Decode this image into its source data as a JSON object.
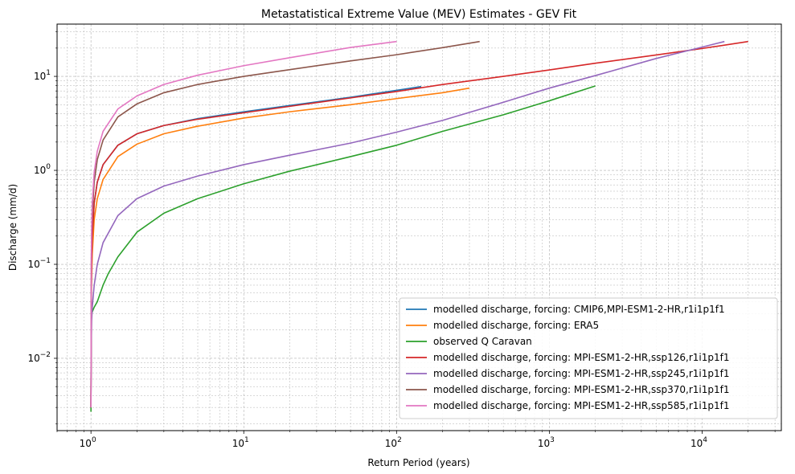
{
  "chart_data": {
    "type": "line",
    "title": "Metastatistical Extreme Value (MEV) Estimates - GEV Fit",
    "xlabel": "Return Period (years)",
    "ylabel": "Discharge (mm/d)",
    "xscale": "log",
    "yscale": "log",
    "xlim": [
      0.6,
      33000
    ],
    "ylim": [
      0.0017,
      36
    ],
    "grid": true,
    "legend_position": "lower-right",
    "x_ticks": [
      {
        "value": 1,
        "base": "10",
        "exp": "0"
      },
      {
        "value": 10,
        "base": "10",
        "exp": "1"
      },
      {
        "value": 100,
        "base": "10",
        "exp": "2"
      },
      {
        "value": 1000,
        "base": "10",
        "exp": "3"
      },
      {
        "value": 10000,
        "base": "10",
        "exp": "4"
      }
    ],
    "y_ticks": [
      {
        "value": 0.01,
        "base": "10",
        "exp": "−2"
      },
      {
        "value": 0.1,
        "base": "10",
        "exp": "−1"
      },
      {
        "value": 1,
        "base": "10",
        "exp": "0"
      },
      {
        "value": 10,
        "base": "10",
        "exp": "1"
      }
    ],
    "series": [
      {
        "name": "modelled discharge, forcing: CMIP6,MPI-ESM1-2-HR,r1i1p1f1",
        "color": "#1f77b4",
        "x": [
          1.0,
          1.005,
          1.01,
          1.02,
          1.05,
          1.1,
          1.2,
          1.5,
          2,
          3,
          5,
          10,
          20,
          50,
          100,
          145
        ],
        "y": [
          0.003,
          0.05,
          0.1,
          0.2,
          0.45,
          0.75,
          1.15,
          1.85,
          2.45,
          3.0,
          3.55,
          4.2,
          4.9,
          6.0,
          7.1,
          7.8
        ]
      },
      {
        "name": "modelled discharge, forcing: ERA5",
        "color": "#ff7f0e",
        "x": [
          1.0,
          1.005,
          1.01,
          1.02,
          1.05,
          1.1,
          1.2,
          1.5,
          2,
          3,
          5,
          10,
          20,
          50,
          100,
          200,
          300
        ],
        "y": [
          0.003,
          0.04,
          0.07,
          0.13,
          0.3,
          0.5,
          0.8,
          1.4,
          1.9,
          2.45,
          2.95,
          3.6,
          4.2,
          5.0,
          5.8,
          6.7,
          7.5
        ]
      },
      {
        "name": "observed Q Caravan",
        "color": "#2ca02c",
        "x": [
          1.0,
          1.002,
          1.005,
          1.01,
          1.05,
          1.1,
          1.2,
          1.3,
          1.5,
          2,
          3,
          5,
          10,
          20,
          50,
          100,
          200,
          500,
          1000,
          2000
        ],
        "y": [
          0.0027,
          0.02,
          0.028,
          0.03,
          0.035,
          0.04,
          0.06,
          0.08,
          0.12,
          0.22,
          0.35,
          0.5,
          0.72,
          0.98,
          1.4,
          1.85,
          2.6,
          3.9,
          5.5,
          7.9
        ]
      },
      {
        "name": "modelled discharge, forcing: MPI-ESM1-2-HR,ssp126,r1i1p1f1",
        "color": "#d62728",
        "x": [
          1.0,
          1.005,
          1.01,
          1.02,
          1.05,
          1.1,
          1.2,
          1.5,
          2,
          3,
          5,
          10,
          20,
          50,
          100,
          200,
          500,
          1000,
          2000,
          5000,
          10000,
          20000
        ],
        "y": [
          0.003,
          0.05,
          0.1,
          0.2,
          0.45,
          0.75,
          1.15,
          1.85,
          2.45,
          3.0,
          3.5,
          4.1,
          4.8,
          5.9,
          6.9,
          8.2,
          10.0,
          11.7,
          13.8,
          16.9,
          19.8,
          23.5
        ]
      },
      {
        "name": "modelled discharge, forcing: MPI-ESM1-2-HR,ssp245,r1i1p1f1",
        "color": "#9467bd",
        "x": [
          1.0,
          1.005,
          1.01,
          1.02,
          1.05,
          1.1,
          1.2,
          1.5,
          2,
          3,
          5,
          10,
          20,
          50,
          100,
          200,
          500,
          1000,
          2000,
          5000,
          10000,
          14000
        ],
        "y": [
          0.003,
          0.015,
          0.025,
          0.035,
          0.06,
          0.1,
          0.17,
          0.33,
          0.5,
          0.68,
          0.87,
          1.15,
          1.45,
          1.95,
          2.55,
          3.4,
          5.3,
          7.5,
          10.2,
          15.5,
          20.5,
          23.5
        ]
      },
      {
        "name": "modelled discharge, forcing: MPI-ESM1-2-HR,ssp370,r1i1p1f1",
        "color": "#8c564b",
        "x": [
          1.0,
          1.005,
          1.01,
          1.02,
          1.05,
          1.1,
          1.2,
          1.5,
          2,
          3,
          5,
          10,
          20,
          50,
          100,
          200,
          350
        ],
        "y": [
          0.003,
          0.1,
          0.2,
          0.35,
          0.75,
          1.3,
          2.1,
          3.7,
          5.1,
          6.7,
          8.2,
          10.0,
          11.8,
          14.6,
          17.0,
          20.2,
          23.5
        ]
      },
      {
        "name": "modelled discharge, forcing: MPI-ESM1-2-HR,ssp585,r1i1p1f1",
        "color": "#e377c2",
        "x": [
          1.0,
          1.005,
          1.01,
          1.02,
          1.05,
          1.1,
          1.2,
          1.5,
          2,
          3,
          5,
          10,
          20,
          50,
          100
        ],
        "y": [
          0.003,
          0.12,
          0.25,
          0.45,
          0.95,
          1.6,
          2.6,
          4.5,
          6.2,
          8.2,
          10.3,
          13.0,
          15.8,
          20.3,
          23.5
        ]
      }
    ]
  }
}
